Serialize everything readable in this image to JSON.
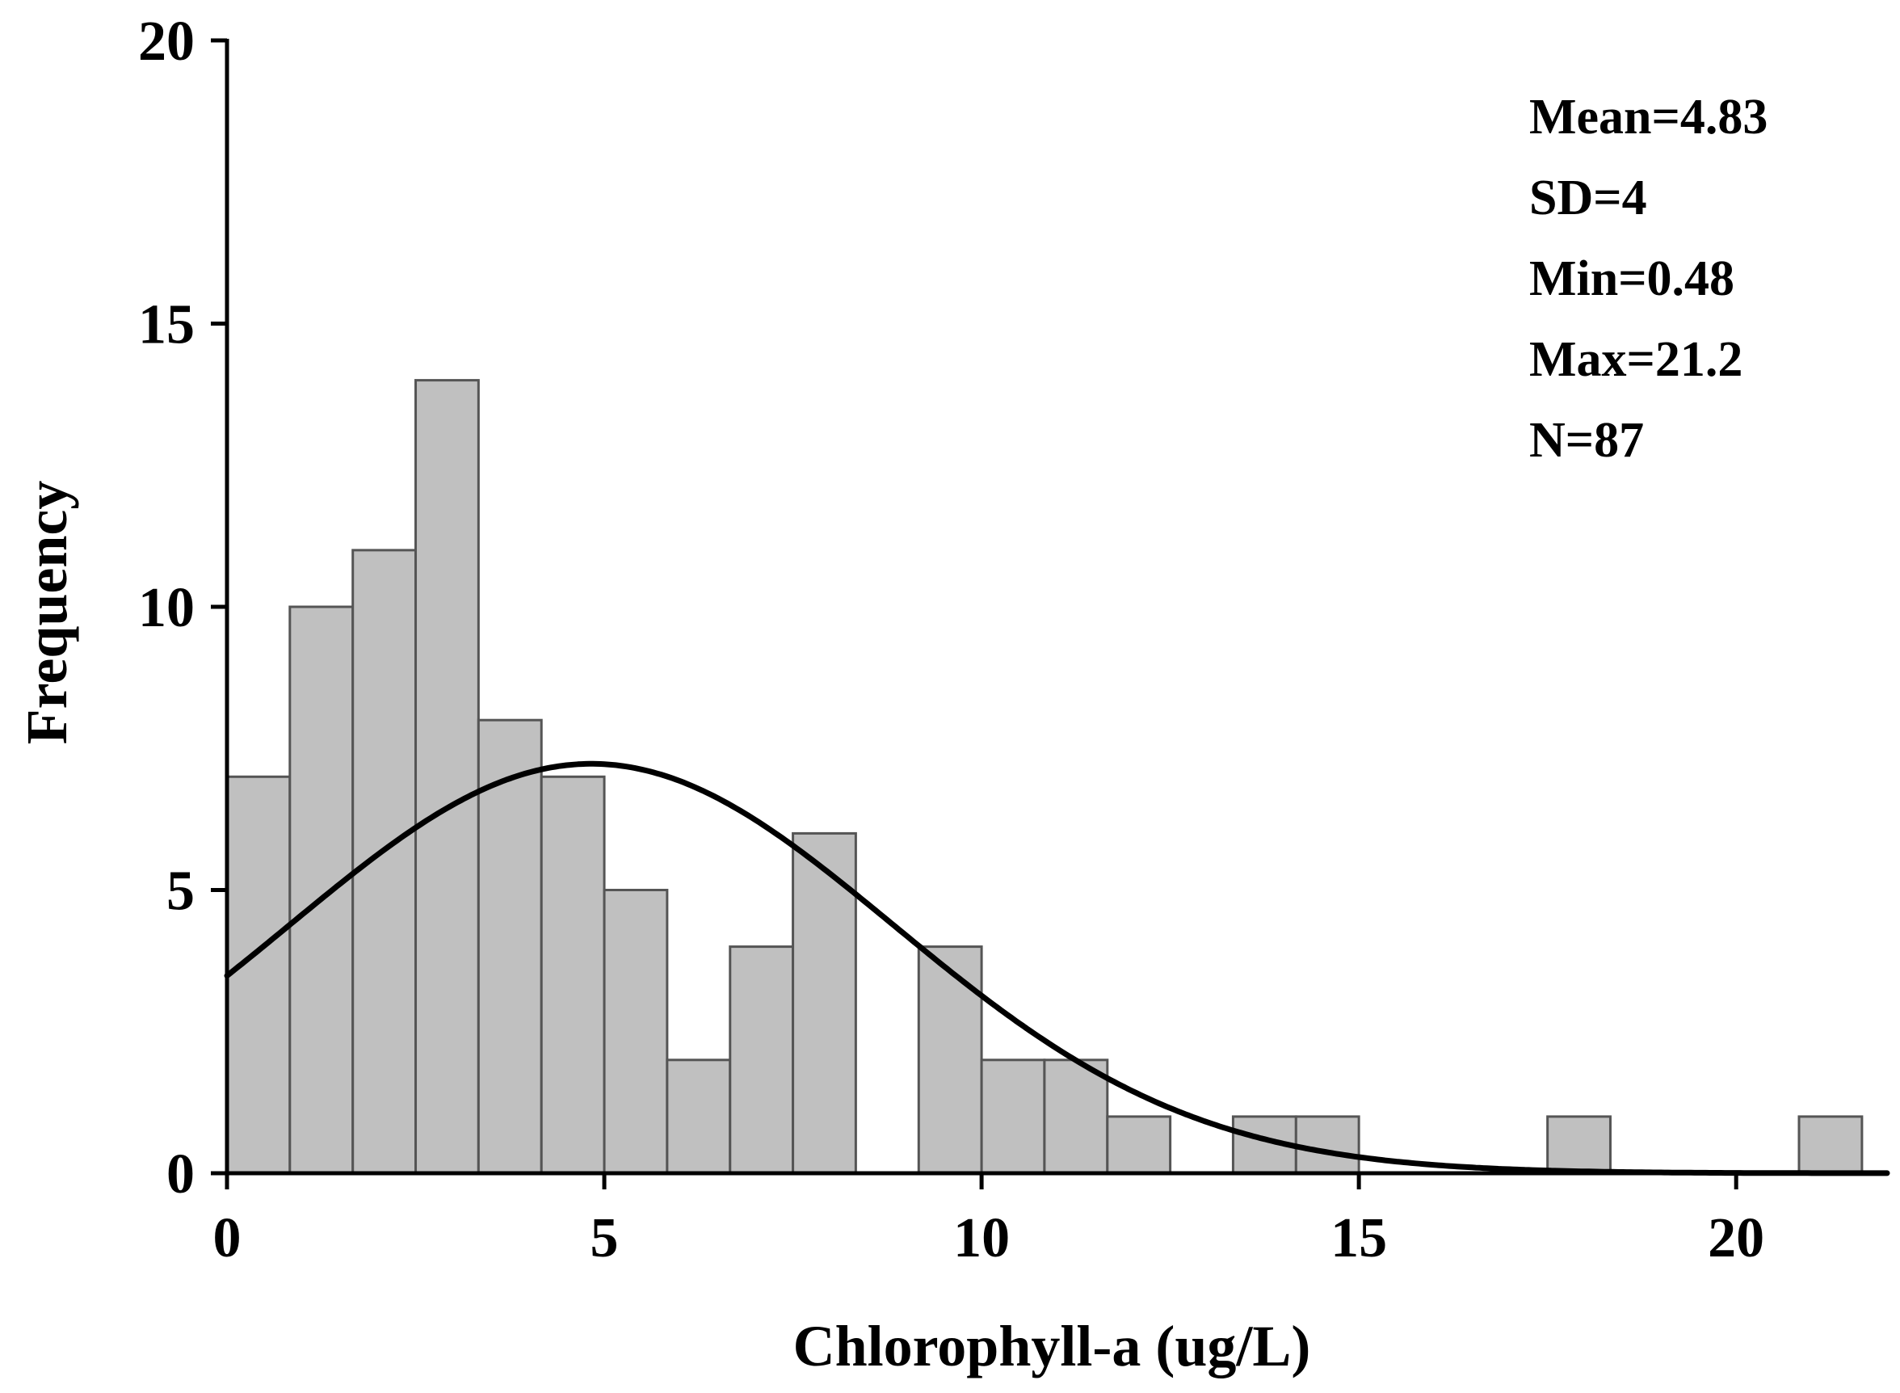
{
  "chart_data": {
    "type": "bar",
    "subtype": "histogram",
    "xlabel": "Chlorophyll-a (ug/L)",
    "ylabel": "Frequency",
    "xlim": [
      0,
      22
    ],
    "ylim": [
      0,
      20
    ],
    "xticks": [
      0,
      5,
      10,
      15,
      20
    ],
    "yticks": [
      0,
      5,
      10,
      15,
      20
    ],
    "bin_width": 0.833,
    "bin_edges": [
      0,
      0.833,
      1.667,
      2.5,
      3.333,
      4.167,
      5,
      5.833,
      6.667,
      7.5,
      8.333,
      9.167,
      10,
      10.833,
      11.667,
      12.5,
      13.333,
      14.167,
      15,
      15.833,
      16.667,
      17.5,
      18.333,
      19.167,
      20,
      20.833,
      21.667
    ],
    "values": [
      7,
      10,
      11,
      14,
      8,
      7,
      5,
      2,
      4,
      6,
      0,
      4,
      2,
      2,
      1,
      0,
      1,
      1,
      0,
      0,
      0,
      1,
      0,
      0,
      0,
      1
    ],
    "bar_color": "#c0c0c0",
    "edge_color": "#555555",
    "curve": {
      "type": "normal",
      "mean": 4.83,
      "sd": 4,
      "n": 87,
      "color": "#000000"
    },
    "annotations": [
      "Mean=4.83",
      "SD=4",
      "Min=0.48",
      "Max=21.2",
      "N=87"
    ],
    "legend_position": "top-right"
  }
}
